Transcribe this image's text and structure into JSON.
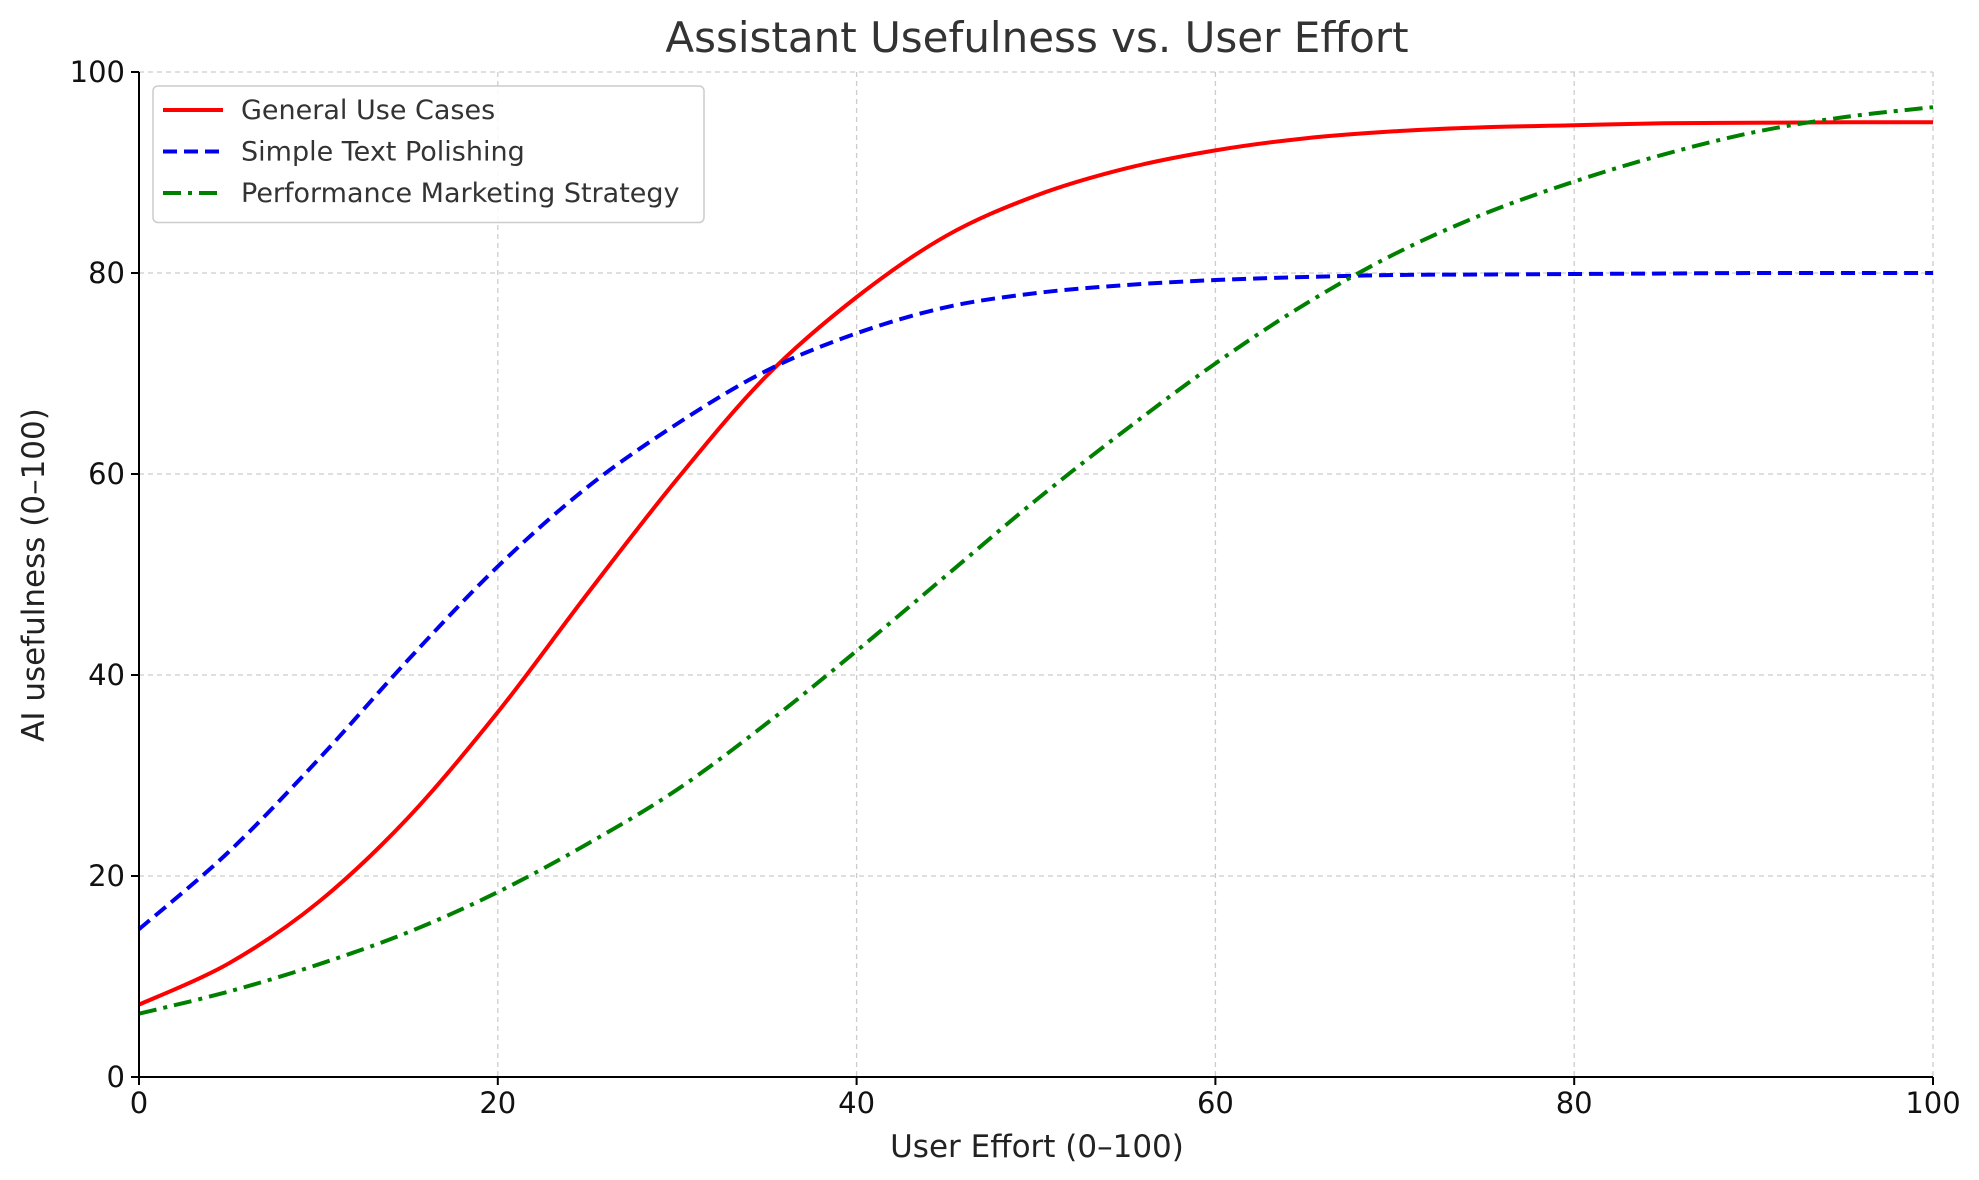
{
  "chart_data": {
    "type": "line",
    "title": "Assistant Usefulness vs. User Effort",
    "xlabel": "User Effort (0–100)",
    "ylabel": "AI usefulness (0–100)",
    "xlim": [
      0,
      100
    ],
    "ylim": [
      0,
      100
    ],
    "xticks": [
      0,
      20,
      40,
      60,
      80,
      100
    ],
    "yticks": [
      0,
      20,
      40,
      60,
      80,
      100
    ],
    "grid": true,
    "legend_position": "top-left",
    "x": [
      0,
      5,
      10,
      15,
      20,
      25,
      30,
      35,
      40,
      45,
      50,
      55,
      60,
      65,
      70,
      75,
      80,
      85,
      90,
      95,
      100
    ],
    "series": [
      {
        "name": "General Use Cases",
        "color": "#ff0000",
        "style": "solid",
        "values": [
          7.2,
          11.3,
          17.4,
          25.8,
          36.3,
          48.1,
          59.5,
          69.8,
          77.6,
          83.7,
          87.7,
          90.4,
          92.2,
          93.4,
          94.1,
          94.5,
          94.7,
          94.9,
          94.95,
          95.0,
          95.0
        ]
      },
      {
        "name": "Simple Text Polishing",
        "color": "#0000ee",
        "style": "dashed",
        "values": [
          14.7,
          22.4,
          31.6,
          41.5,
          50.8,
          58.7,
          65.0,
          70.3,
          74.0,
          76.6,
          78.0,
          78.8,
          79.3,
          79.6,
          79.8,
          79.85,
          79.9,
          79.95,
          80.0,
          80.0,
          80.0
        ]
      },
      {
        "name": "Performance Marketing Strategy",
        "color": "#008000",
        "style": "dashdot",
        "values": [
          6.3,
          8.5,
          11.2,
          14.4,
          18.4,
          23.2,
          28.6,
          35.2,
          42.4,
          49.9,
          57.4,
          64.4,
          71.0,
          76.9,
          81.9,
          85.9,
          89.1,
          91.8,
          94.0,
          95.5,
          96.5
        ]
      }
    ]
  }
}
